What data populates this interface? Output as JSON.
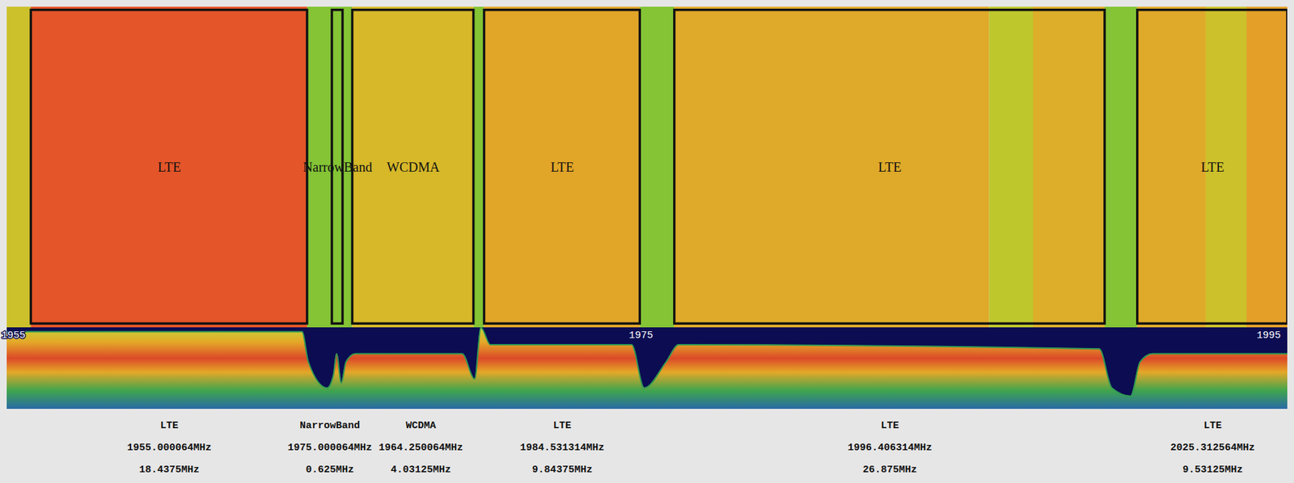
{
  "chart_data": {
    "type": "spectrogram",
    "xlim": [
      1954.8,
      1995.6
    ],
    "xticks": [
      1955,
      1975,
      1995
    ],
    "tick_labels": "x",
    "waterfall": {
      "x1": [
        1954.8,
        1955.57,
        1964.37,
        1965.81,
        1969.67,
        1970.01,
        1974.97,
        1976.07,
        1986.1,
        1987.5,
        1989.78,
        1990.82,
        1993.0,
        1994.3
      ],
      "x2": [
        1955.57,
        1964.37,
        1965.81,
        1969.67,
        1970.01,
        1974.97,
        1976.07,
        1986.1,
        1987.5,
        1989.78,
        1990.82,
        1993.0,
        1994.3,
        1995.6
      ],
      "levels": [
        45,
        90,
        25,
        50,
        25,
        58,
        25,
        56,
        40,
        54,
        25,
        56,
        45,
        60
      ],
      "level_range": [
        0,
        100
      ]
    },
    "signals": [
      {
        "label": "LTE",
        "start": 1955.57,
        "end": 1964.37,
        "frequency": "1955.000064MHz",
        "bandwidth": "18.4375MHz"
      },
      {
        "label": "NarrowBand",
        "start": 1965.16,
        "end": 1965.5,
        "frequency": "1975.000064MHz",
        "bandwidth": "0.625MHz"
      },
      {
        "label": "WCDMA",
        "start": 1965.81,
        "end": 1969.67,
        "frequency": "1964.250064MHz",
        "bandwidth": "4.03125MHz"
      },
      {
        "label": "LTE",
        "start": 1970.01,
        "end": 1974.97,
        "frequency": "1984.531314MHz",
        "bandwidth": "9.84375MHz"
      },
      {
        "label": "LTE",
        "start": 1976.07,
        "end": 1989.78,
        "frequency": "1996.406314MHz",
        "bandwidth": "26.875MHz"
      },
      {
        "label": "LTE",
        "start": 1990.82,
        "end": 1995.6,
        "frequency": "2025.312564MHz",
        "bandwidth": "9.53125MHz"
      }
    ],
    "spectrum": {
      "x": [
        1954.8,
        1955.0,
        1964.2,
        1964.4,
        1965.0,
        1965.2,
        1965.3,
        1965.45,
        1965.6,
        1965.9,
        1969.3,
        1969.7,
        1969.9,
        1970.2,
        1974.7,
        1975.1,
        1975.8,
        1976.2,
        1989.6,
        1990.0,
        1990.6,
        1990.9,
        1991.3,
        1995.6
      ],
      "values": [
        95,
        95,
        95,
        58,
        26,
        42,
        68,
        32,
        58,
        68,
        68,
        37,
        100,
        79,
        79,
        26,
        58,
        79,
        74,
        26,
        16,
        58,
        68,
        68
      ],
      "ylim": [
        0,
        100
      ]
    }
  }
}
